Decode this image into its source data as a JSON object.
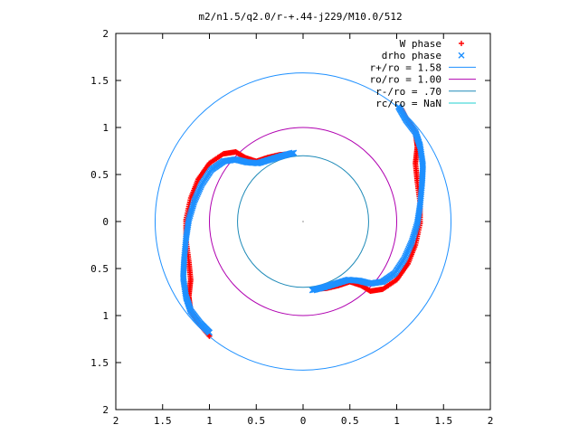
{
  "chart_data": {
    "type": "scatter",
    "title": "m2/n1.5/q2.0/r-+.44-j229/M10.0/512",
    "xlabel": "",
    "ylabel": "",
    "xlim": [
      -2,
      2
    ],
    "ylim": [
      -2,
      2
    ],
    "x_tick_labels": [
      "2",
      "1.5",
      "1",
      "0.5",
      "0",
      "0.5",
      "1",
      "1.5",
      "2"
    ],
    "y_tick_labels": [
      "2",
      "1.5",
      "1",
      "0.5",
      "0",
      "0.5",
      "1",
      "1.5",
      "2"
    ],
    "tick_values": [
      -2,
      -1.5,
      -1,
      -0.5,
      0,
      0.5,
      1,
      1.5,
      2
    ],
    "grid": false,
    "legend_position": "top-right",
    "series": [
      {
        "name": "W phase",
        "kind": "points",
        "marker": "+",
        "color": "#ff0000",
        "arms": [
          [
            [
              -0.12,
              0.72
            ],
            [
              -0.25,
              0.71
            ],
            [
              -0.38,
              0.68
            ],
            [
              -0.5,
              0.64
            ],
            [
              -0.62,
              0.68
            ],
            [
              -0.72,
              0.74
            ],
            [
              -0.85,
              0.72
            ],
            [
              -1.0,
              0.62
            ],
            [
              -1.12,
              0.45
            ],
            [
              -1.2,
              0.25
            ],
            [
              -1.25,
              0.02
            ],
            [
              -1.25,
              -0.2
            ],
            [
              -1.22,
              -0.42
            ],
            [
              -1.2,
              -0.62
            ],
            [
              -1.22,
              -0.8
            ],
            [
              -1.2,
              -0.95
            ],
            [
              -1.1,
              -1.1
            ],
            [
              -1.0,
              -1.22
            ]
          ],
          [
            [
              0.12,
              -0.72
            ],
            [
              0.25,
              -0.71
            ],
            [
              0.38,
              -0.68
            ],
            [
              0.5,
              -0.64
            ],
            [
              0.62,
              -0.68
            ],
            [
              0.72,
              -0.74
            ],
            [
              0.85,
              -0.72
            ],
            [
              1.0,
              -0.62
            ],
            [
              1.12,
              -0.45
            ],
            [
              1.2,
              -0.25
            ],
            [
              1.25,
              -0.02
            ],
            [
              1.25,
              0.2
            ],
            [
              1.22,
              0.42
            ],
            [
              1.2,
              0.62
            ],
            [
              1.22,
              0.8
            ],
            [
              1.2,
              0.95
            ],
            [
              1.1,
              1.1
            ],
            [
              1.05,
              1.2
            ]
          ]
        ]
      },
      {
        "name": "drho phase",
        "kind": "points",
        "marker": "x",
        "color": "#1e90ff",
        "arms": [
          [
            [
              -0.1,
              0.73
            ],
            [
              -0.22,
              0.7
            ],
            [
              -0.35,
              0.66
            ],
            [
              -0.48,
              0.62
            ],
            [
              -0.6,
              0.63
            ],
            [
              -0.72,
              0.66
            ],
            [
              -0.85,
              0.64
            ],
            [
              -0.98,
              0.55
            ],
            [
              -1.08,
              0.4
            ],
            [
              -1.16,
              0.22
            ],
            [
              -1.22,
              0.02
            ],
            [
              -1.25,
              -0.18
            ],
            [
              -1.27,
              -0.4
            ],
            [
              -1.28,
              -0.6
            ],
            [
              -1.25,
              -0.8
            ],
            [
              -1.2,
              -0.95
            ],
            [
              -1.1,
              -1.08
            ],
            [
              -1.0,
              -1.18
            ]
          ],
          [
            [
              0.1,
              -0.73
            ],
            [
              0.22,
              -0.7
            ],
            [
              0.35,
              -0.66
            ],
            [
              0.48,
              -0.62
            ],
            [
              0.6,
              -0.63
            ],
            [
              0.72,
              -0.66
            ],
            [
              0.85,
              -0.64
            ],
            [
              0.98,
              -0.55
            ],
            [
              1.08,
              -0.4
            ],
            [
              1.16,
              -0.22
            ],
            [
              1.22,
              -0.02
            ],
            [
              1.25,
              0.18
            ],
            [
              1.27,
              0.4
            ],
            [
              1.28,
              0.6
            ],
            [
              1.25,
              0.8
            ],
            [
              1.2,
              0.95
            ],
            [
              1.1,
              1.08
            ],
            [
              1.02,
              1.22
            ]
          ]
        ]
      },
      {
        "name": "r+/ro = 1.58",
        "kind": "circle",
        "radius": 1.58,
        "color": "#1e90ff"
      },
      {
        "name": "ro/ro = 1.00",
        "kind": "circle",
        "radius": 1.0,
        "color": "#b000b0"
      },
      {
        "name": "r-/ro = .70",
        "kind": "circle",
        "radius": 0.7,
        "color": "#1e8ab8"
      },
      {
        "name": "rc/ro = NaN",
        "kind": "circle",
        "radius": null,
        "color": "#20d0d0"
      }
    ]
  }
}
